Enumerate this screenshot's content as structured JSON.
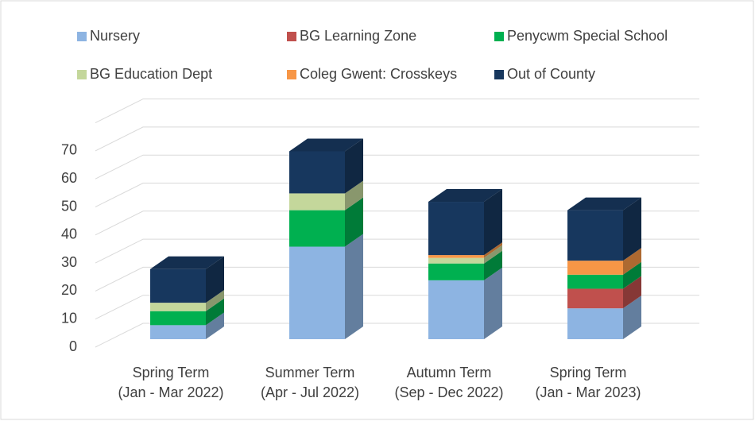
{
  "chart_data": {
    "type": "bar3d_stacked",
    "categories": [
      "Spring Term\n(Jan - Mar 2022)",
      "Summer Term\n(Apr - Jul 2022)",
      "Autumn Term\n(Sep - Dec 2022)",
      "Spring Term\n(Jan - Mar 2023)"
    ],
    "series": [
      {
        "name": "Nursery",
        "color": "#8db4e2",
        "values": [
          5,
          33,
          21,
          11
        ]
      },
      {
        "name": "BG Learning Zone",
        "color": "#c0504d",
        "values": [
          0,
          0,
          0,
          7
        ]
      },
      {
        "name": "Penycwm Special School",
        "color": "#00b050",
        "values": [
          5,
          13,
          6,
          5
        ]
      },
      {
        "name": "BG Education Dept",
        "color": "#c4d79b",
        "values": [
          3,
          6,
          2,
          0
        ]
      },
      {
        "name": "Coleg Gwent: Crosskeys",
        "color": "#f79646",
        "values": [
          0,
          0,
          1,
          5
        ]
      },
      {
        "name": "Out of County",
        "color": "#17375e",
        "values": [
          12,
          15,
          19,
          18
        ]
      }
    ],
    "ylim": [
      0,
      80
    ],
    "yticks": [
      0,
      10,
      20,
      30,
      40,
      50,
      60,
      70
    ],
    "grid": true,
    "legend": "top",
    "stacked": true
  }
}
